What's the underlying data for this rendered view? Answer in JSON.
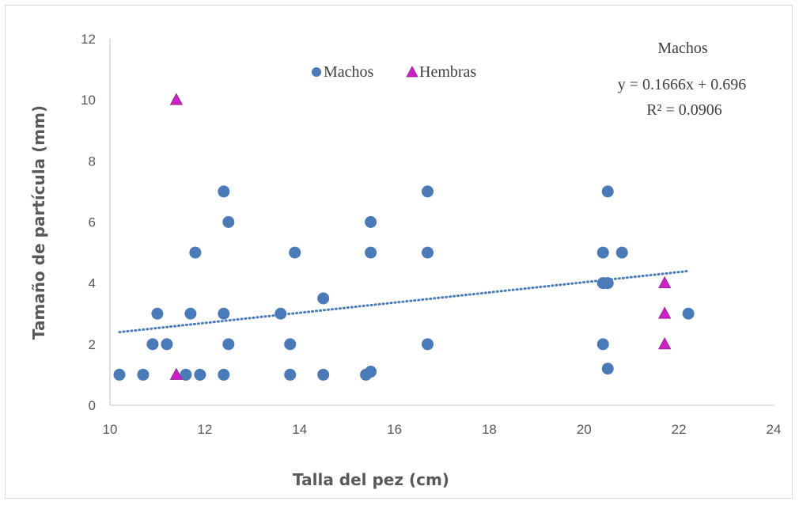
{
  "chart_data": {
    "type": "scatter",
    "xlabel": "Talla del pez (cm)",
    "ylabel": "Tamaño de partícula (mm)",
    "xlim": [
      10,
      24
    ],
    "ylim": [
      0,
      12
    ],
    "xticks": [
      10,
      12,
      14,
      16,
      18,
      20,
      22,
      24
    ],
    "yticks": [
      0,
      2,
      4,
      6,
      8,
      10,
      12
    ],
    "grid": false,
    "legend_position": "top-center",
    "series": [
      {
        "name": "Machos",
        "marker": "circle",
        "color": "#4a7ab8",
        "points": [
          [
            10.2,
            1
          ],
          [
            10.7,
            1
          ],
          [
            10.9,
            2
          ],
          [
            11.0,
            3
          ],
          [
            11.2,
            2
          ],
          [
            11.6,
            1
          ],
          [
            11.7,
            3
          ],
          [
            11.8,
            5
          ],
          [
            11.9,
            1
          ],
          [
            12.4,
            7
          ],
          [
            12.4,
            3
          ],
          [
            12.4,
            1
          ],
          [
            12.5,
            6
          ],
          [
            12.5,
            2
          ],
          [
            13.6,
            3
          ],
          [
            13.8,
            2
          ],
          [
            13.8,
            1
          ],
          [
            13.9,
            5
          ],
          [
            14.5,
            3.5
          ],
          [
            14.5,
            1
          ],
          [
            15.4,
            1
          ],
          [
            15.5,
            6
          ],
          [
            15.5,
            5
          ],
          [
            15.5,
            1.1
          ],
          [
            16.7,
            7
          ],
          [
            16.7,
            5
          ],
          [
            16.7,
            2
          ],
          [
            20.4,
            5
          ],
          [
            20.4,
            4
          ],
          [
            20.4,
            2
          ],
          [
            20.5,
            7
          ],
          [
            20.5,
            4
          ],
          [
            20.5,
            1.2
          ],
          [
            20.8,
            5
          ],
          [
            22.2,
            3
          ]
        ]
      },
      {
        "name": "Hembras",
        "marker": "triangle",
        "color": "#cc1fc6",
        "points": [
          [
            11.4,
            10
          ],
          [
            11.4,
            1
          ],
          [
            21.7,
            4
          ],
          [
            21.7,
            3
          ],
          [
            21.7,
            2
          ]
        ]
      }
    ],
    "trendline": {
      "series": "Machos",
      "type": "linear",
      "slope": 0.1666,
      "intercept": 0.696,
      "x_range": [
        10.2,
        22.2
      ],
      "style": "dotted",
      "color": "#4a7ab8"
    },
    "annotations": {
      "title": "Machos",
      "equation": "y = 0.1666x + 0.696",
      "r_squared": "R² = 0.0906"
    }
  }
}
